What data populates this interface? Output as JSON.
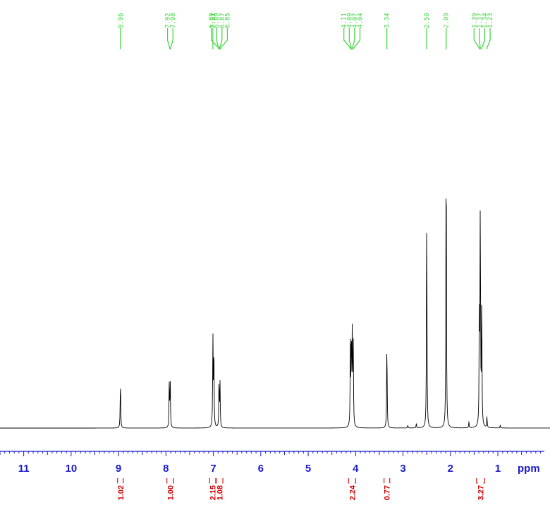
{
  "chart_data": {
    "type": "line",
    "title": "",
    "xlabel": "ppm",
    "ylabel": "",
    "xlim": [
      11.5,
      -0.1
    ],
    "x_reversed": true,
    "grid": false,
    "tick_labels": [
      "11",
      "10",
      "9",
      "8",
      "7",
      "6",
      "5",
      "4",
      "3",
      "2",
      "1"
    ],
    "peak_labels": [
      {
        "text": "8.96",
        "ppm": 8.96
      },
      {
        "text": "7.92",
        "ppm": 7.92
      },
      {
        "text": "7.90",
        "ppm": 7.9
      },
      {
        "text": "7.01",
        "ppm": 7.01
      },
      {
        "text": "6.89",
        "ppm": 6.89
      },
      {
        "text": "6.89",
        "ppm": 6.89
      },
      {
        "text": "6.87",
        "ppm": 6.87
      },
      {
        "text": "6.85",
        "ppm": 6.85
      },
      {
        "text": "4.11",
        "ppm": 4.11
      },
      {
        "text": "4.09",
        "ppm": 4.09
      },
      {
        "text": "4.07",
        "ppm": 4.07
      },
      {
        "text": "4.04",
        "ppm": 4.04
      },
      {
        "text": "3.34",
        "ppm": 3.34
      },
      {
        "text": "2.50",
        "ppm": 2.5
      },
      {
        "text": "2.09",
        "ppm": 2.09
      },
      {
        "text": "1.39",
        "ppm": 1.39
      },
      {
        "text": "1.37",
        "ppm": 1.37
      },
      {
        "text": "1.34",
        "ppm": 1.34
      },
      {
        "text": "1.23",
        "ppm": 1.23
      }
    ],
    "integrals": [
      {
        "from": 9.02,
        "to": 8.9,
        "value": "1.02"
      },
      {
        "from": 7.98,
        "to": 7.84,
        "value": "1.00"
      },
      {
        "from": 7.08,
        "to": 6.95,
        "value": "2.15"
      },
      {
        "from": 6.94,
        "to": 6.8,
        "value": "1.08"
      },
      {
        "from": 4.15,
        "to": 4.0,
        "value": "2.24"
      },
      {
        "from": 3.4,
        "to": 3.28,
        "value": "0.77"
      },
      {
        "from": 1.45,
        "to": 1.28,
        "value": "3.27"
      }
    ],
    "peaks": [
      {
        "ppm": 8.96,
        "height": 0.16
      },
      {
        "ppm": 7.93,
        "height": 0.14
      },
      {
        "ppm": 7.91,
        "height": 0.15
      },
      {
        "ppm": 7.01,
        "height": 0.29
      },
      {
        "ppm": 6.99,
        "height": 0.27
      },
      {
        "ppm": 6.88,
        "height": 0.15
      },
      {
        "ppm": 6.86,
        "height": 0.14
      },
      {
        "ppm": 4.11,
        "height": 0.26
      },
      {
        "ppm": 4.09,
        "height": 0.3
      },
      {
        "ppm": 4.07,
        "height": 0.3
      },
      {
        "ppm": 4.05,
        "height": 0.26
      },
      {
        "ppm": 3.34,
        "height": 0.29
      },
      {
        "ppm": 2.9,
        "height": 0.01
      },
      {
        "ppm": 2.72,
        "height": 0.015
      },
      {
        "ppm": 2.5,
        "height": 0.74
      },
      {
        "ppm": 2.09,
        "height": 1.0
      },
      {
        "ppm": 1.61,
        "height": 0.02
      },
      {
        "ppm": 1.39,
        "height": 0.38
      },
      {
        "ppm": 1.37,
        "height": 0.74
      },
      {
        "ppm": 1.34,
        "height": 0.42
      },
      {
        "ppm": 1.23,
        "height": 0.035
      },
      {
        "ppm": 0.95,
        "height": 0.01
      }
    ],
    "colors": {
      "spectrum": "#000000",
      "axis": "#1a1acc",
      "peak_labels": "#3ad43a",
      "integrals": "#d40000"
    }
  }
}
